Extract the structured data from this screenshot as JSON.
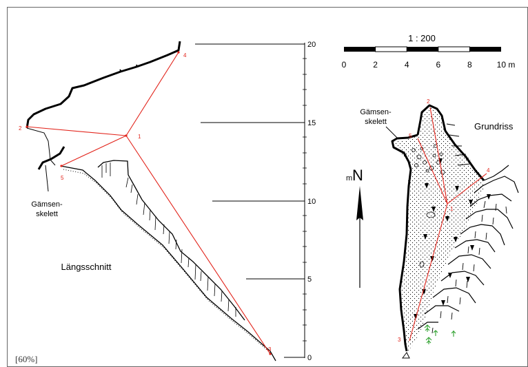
{
  "labels": {
    "section_title": "Längsschnitt",
    "plan_title": "Grundriss",
    "skeleton_section_line1": "Gämsen-",
    "skeleton_section_line2": "skelett",
    "skeleton_plan_line1": "Gämsen-",
    "skeleton_plan_line2": "skelett",
    "north_prefix": "m",
    "north_letter": "N",
    "zoom": "[60%]"
  },
  "height_scale": {
    "ticks": [
      "0",
      "5",
      "10",
      "15",
      "20"
    ]
  },
  "scale_bar": {
    "ratio": "1 : 200",
    "ticks": [
      "0",
      "2",
      "4",
      "6",
      "8",
      "10 m"
    ]
  },
  "section_stations": [
    "1",
    "2",
    "3",
    "4",
    "5"
  ],
  "plan_stations": [
    "1",
    "2",
    "3",
    "4",
    "5"
  ],
  "colors": {
    "survey_line": "#e2231a",
    "outline": "#000000",
    "vegetation": "#2ca02c"
  }
}
